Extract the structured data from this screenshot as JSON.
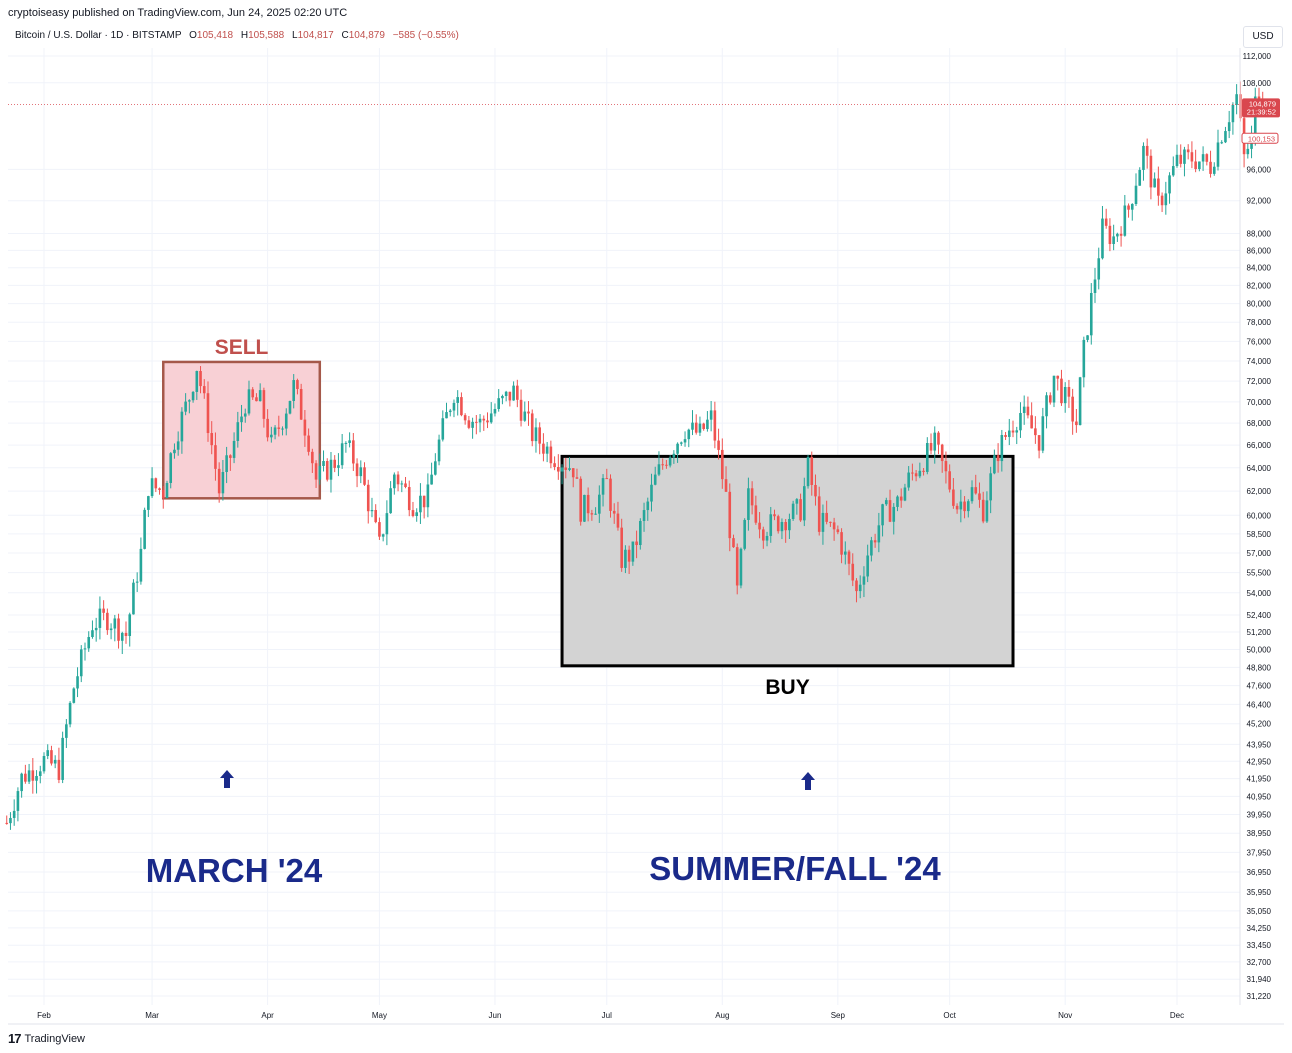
{
  "header": {
    "publisher": "cryptoiseasy published on TradingView.com, Jun 24, 2025 02:20 UTC",
    "symbol": "Bitcoin / U.S. Dollar · 1D · BITSTAMP",
    "open_label": "O",
    "open": "105,418",
    "high_label": "H",
    "high": "105,588",
    "low_label": "L",
    "low": "104,817",
    "close_label": "C",
    "close": "104,879",
    "change": "−585 (−0.55%)"
  },
  "currency": "USD",
  "footer": {
    "logo_text": "TradingView",
    "logo_mark": "17"
  },
  "colors": {
    "up": "#26a69a",
    "down": "#ef5350",
    "sell_fill": "#f8d0d5",
    "sell_border": "#a5584a",
    "buy_fill": "#d3d3d3",
    "annotation_blue": "#1a2a8a",
    "sell_text": "#c0504d",
    "price_tag": "#d9474e"
  },
  "chart_data": {
    "type": "candlestick",
    "y_scale": "log",
    "ylim": [
      30500,
      114000
    ],
    "y_ticks": [
      "112,000",
      "108,000",
      "96,000",
      "92,000",
      "88,000",
      "86,000",
      "84,000",
      "82,000",
      "80,000",
      "78,000",
      "76,000",
      "74,000",
      "72,000",
      "70,000",
      "68,000",
      "66,000",
      "64,000",
      "62,000",
      "60,000",
      "58,500",
      "57,000",
      "55,500",
      "54,000",
      "52,400",
      "51,200",
      "50,000",
      "48,800",
      "47,600",
      "46,400",
      "45,200",
      "43,950",
      "42,950",
      "41,950",
      "40,950",
      "39,950",
      "38,950",
      "37,950",
      "36,950",
      "35,950",
      "35,050",
      "34,250",
      "33,450",
      "32,700",
      "31,940",
      "31,220"
    ],
    "x_ticks": [
      "Feb",
      "Mar",
      "Apr",
      "May",
      "Jun",
      "Jul",
      "Aug",
      "Sep",
      "Oct",
      "Nov",
      "Dec"
    ],
    "last_price": {
      "value": "104,879",
      "countdown": "21:39:52",
      "previous": "100,153"
    },
    "annotations": {
      "sell_label": "SELL",
      "buy_label": "BUY",
      "march_label": "MARCH '24",
      "summer_label": "SUMMER/FALL '24"
    },
    "path_points": [
      [
        "Jan 22",
        39500
      ],
      [
        "Jan 26",
        42000
      ],
      [
        "Feb 1",
        43000
      ],
      [
        "Feb 5",
        42500
      ],
      [
        "Feb 9",
        47500
      ],
      [
        "Feb 14",
        51800
      ],
      [
        "Feb 18",
        52200
      ],
      [
        "Feb 23",
        51000
      ],
      [
        "Feb 27",
        57000
      ],
      [
        "Feb 29",
        62500
      ],
      [
        "Mar 4",
        62000
      ],
      [
        "Mar 7",
        66500
      ],
      [
        "Mar 11",
        70500
      ],
      [
        "Mar 13",
        73500
      ],
      [
        "Mar 16",
        68000
      ],
      [
        "Mar 19",
        62000
      ],
      [
        "Mar 22",
        65000
      ],
      [
        "Mar 26",
        70000
      ],
      [
        "Mar 30",
        70000
      ],
      [
        "Apr 2",
        66000
      ],
      [
        "Apr 5",
        68500
      ],
      [
        "Apr 8",
        71500
      ],
      [
        "Apr 12",
        66500
      ],
      [
        "Apr 14",
        63000
      ],
      [
        "Apr 19",
        64500
      ],
      [
        "Apr 22",
        66000
      ],
      [
        "Apr 26",
        63500
      ],
      [
        "May 1",
        57500
      ],
      [
        "May 5",
        63500
      ],
      [
        "May 10",
        61000
      ],
      [
        "May 14",
        61500
      ],
      [
        "May 16",
        65000
      ],
      [
        "May 21",
        71000
      ],
      [
        "May 25",
        68500
      ],
      [
        "May 28",
        68000
      ],
      [
        "Jun 6",
        71000
      ],
      [
        "Jun 11",
        67000
      ],
      [
        "Jun 17",
        65000
      ],
      [
        "Jun 22",
        64000
      ],
      [
        "Jun 24",
        60500
      ],
      [
        "Jun 28",
        61000
      ],
      [
        "Jul 1",
        62700
      ],
      [
        "Jul 5",
        56500
      ],
      [
        "Jul 8",
        57000
      ],
      [
        "Jul 14",
        63000
      ],
      [
        "Jul 17",
        65000
      ],
      [
        "Jul 22",
        67500
      ],
      [
        "Jul 26",
        67000
      ],
      [
        "Jul 29",
        68500
      ],
      [
        "Aug 2",
        61500
      ],
      [
        "Aug 5",
        54000
      ],
      [
        "Aug 8",
        61500
      ],
      [
        "Aug 12",
        59000
      ],
      [
        "Aug 16",
        59500
      ],
      [
        "Aug 22",
        60500
      ],
      [
        "Aug 24",
        64000
      ],
      [
        "Aug 27",
        59500
      ],
      [
        "Sep 1",
        58500
      ],
      [
        "Sep 6",
        54000
      ],
      [
        "Sep 9",
        57000
      ],
      [
        "Sep 13",
        60000
      ],
      [
        "Sep 17",
        61000
      ],
      [
        "Sep 20",
        63000
      ],
      [
        "Sep 27",
        66000
      ],
      [
        "Sep 30",
        63300
      ],
      [
        "Oct 3",
        60800
      ],
      [
        "Oct 7",
        62000
      ],
      [
        "Oct 10",
        60500
      ],
      [
        "Oct 14",
        65500
      ],
      [
        "Oct 17",
        67500
      ],
      [
        "Oct 20",
        69000
      ],
      [
        "Oct 25",
        66500
      ],
      [
        "Oct 29",
        72500
      ],
      [
        "Nov 4",
        68000
      ],
      [
        "Nov 6",
        75000
      ],
      [
        "Nov 11",
        88500
      ],
      [
        "Nov 14",
        87500
      ],
      [
        "Nov 18",
        91000
      ],
      [
        "Nov 22",
        98500
      ],
      [
        "Nov 26",
        91500
      ],
      [
        "Dec 1",
        97000
      ],
      [
        "Dec 5",
        97500
      ],
      [
        "Dec 10",
        96500
      ],
      [
        "Dec 13",
        101000
      ],
      [
        "Dec 17",
        106000
      ],
      [
        "Dec 19",
        97500
      ],
      [
        "Dec 21",
        100153
      ]
    ]
  }
}
